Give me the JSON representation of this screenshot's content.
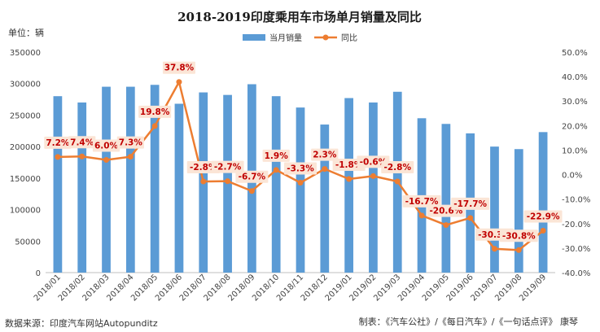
{
  "chart_data": {
    "type": "bar",
    "title": "2018-2019印度乘用车市场单月销量及同比",
    "unit_label": "单位：辆",
    "categories": [
      "2018/01",
      "2018/02",
      "2018/03",
      "2018/04",
      "2018/05",
      "2018/06",
      "2018/07",
      "2018/08",
      "2018/09",
      "2018/10",
      "2018/11",
      "2018/12",
      "2019/01",
      "2019/02",
      "2019/03",
      "2019/04",
      "2019/05",
      "2019/06",
      "2019/07",
      "2019/08",
      "2019/09"
    ],
    "series": [
      {
        "name": "当月销量",
        "type": "bar",
        "axis": "left",
        "color": "#5b9bd5",
        "values": [
          280000,
          270000,
          295000,
          295000,
          298000,
          268000,
          286000,
          282000,
          299000,
          280000,
          262000,
          235000,
          277000,
          270000,
          287000,
          245000,
          236000,
          221000,
          200000,
          196000,
          223000
        ]
      },
      {
        "name": "同比",
        "type": "line",
        "axis": "right",
        "color": "#ed7d31",
        "values": [
          7.2,
          7.4,
          6.0,
          7.3,
          19.8,
          37.8,
          -2.8,
          -2.7,
          -6.7,
          1.9,
          -3.3,
          2.3,
          -1.8,
          -0.6,
          -2.8,
          -16.7,
          -20.6,
          -17.7,
          -30.3,
          -30.8,
          -22.9
        ],
        "labels": [
          "7.2%",
          "7.4%",
          "6.0%",
          "7.3%",
          "19.8%",
          "37.8%",
          "-2.8%",
          "-2.7%",
          "-6.7%",
          "1.9%",
          "-3.3%",
          "2.3%",
          "-1.8%",
          "-0.6%",
          "-2.8%",
          "-16.7%",
          "-20.6%",
          "-17.7%",
          "-30.3%",
          "-30.8%",
          "-22.9%"
        ]
      }
    ],
    "y_left": {
      "min": 0,
      "max": 350000,
      "step": 50000,
      "ticks": [
        "0",
        "50000",
        "100000",
        "150000",
        "200000",
        "250000",
        "300000",
        "350000"
      ]
    },
    "y_right": {
      "min": -40,
      "max": 50,
      "step": 10,
      "ticks": [
        "-40.0%",
        "-30.0%",
        "-20.0%",
        "-10.0%",
        "0.0%",
        "10.0%",
        "20.0%",
        "30.0%",
        "40.0%",
        "50.0%"
      ]
    },
    "legend_position": "top-center",
    "grid": false
  },
  "footer": {
    "source": "数据来源：印度汽车网站Autopunditz",
    "credit": "制表：《汽车公社》/《每日汽车》/《一句话点评》 康琴"
  }
}
